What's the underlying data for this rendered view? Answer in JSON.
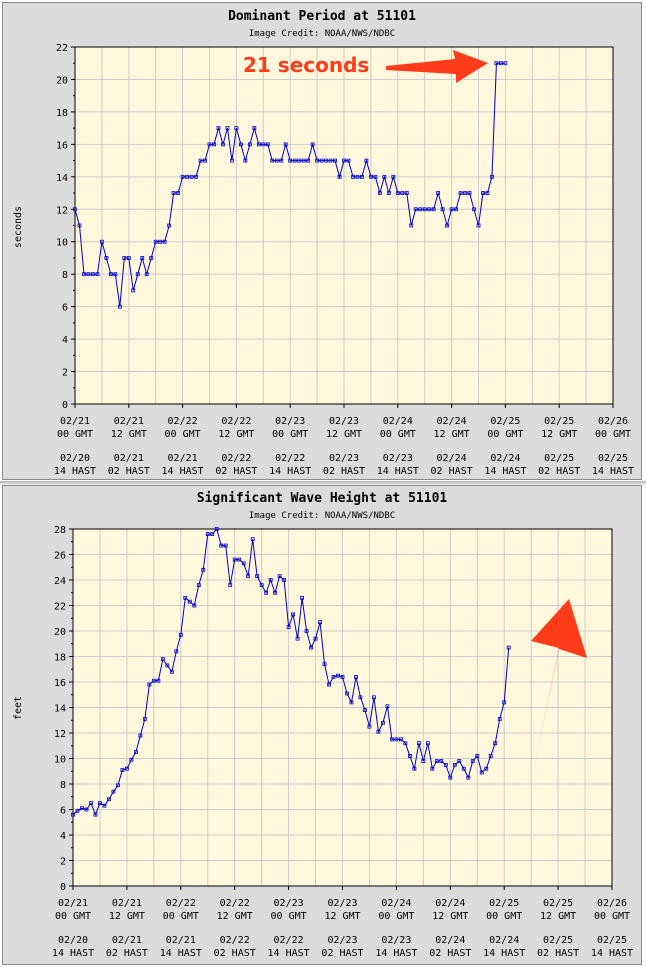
{
  "colors": {
    "panel_bg": "#dcdcdc",
    "plot_bg": "#fff8dc",
    "grid": "#cccccc",
    "series": "#0000cc",
    "annotation": "#ff3b1a"
  },
  "chart_data": [
    {
      "type": "line",
      "title": "Dominant Period at 51101",
      "subtitle": "Image Credit: NOAA/NWS/NDBC",
      "ylabel": "seconds",
      "ylim": [
        0,
        22
      ],
      "yticks": [
        0,
        2,
        4,
        6,
        8,
        10,
        12,
        14,
        16,
        18,
        20,
        22
      ],
      "xlim": [
        0,
        120
      ],
      "x_ticks": [
        {
          "x": 0,
          "gmt": [
            "02/21",
            "00 GMT"
          ],
          "hast": [
            "02/20",
            "14 HAST"
          ]
        },
        {
          "x": 12,
          "gmt": [
            "02/21",
            "12 GMT"
          ],
          "hast": [
            "02/21",
            "02 HAST"
          ]
        },
        {
          "x": 24,
          "gmt": [
            "02/22",
            "00 GMT"
          ],
          "hast": [
            "02/21",
            "14 HAST"
          ]
        },
        {
          "x": 36,
          "gmt": [
            "02/22",
            "12 GMT"
          ],
          "hast": [
            "02/22",
            "02 HAST"
          ]
        },
        {
          "x": 48,
          "gmt": [
            "02/23",
            "00 GMT"
          ],
          "hast": [
            "02/22",
            "14 HAST"
          ]
        },
        {
          "x": 60,
          "gmt": [
            "02/23",
            "12 GMT"
          ],
          "hast": [
            "02/23",
            "02 HAST"
          ]
        },
        {
          "x": 72,
          "gmt": [
            "02/24",
            "00 GMT"
          ],
          "hast": [
            "02/23",
            "14 HAST"
          ]
        },
        {
          "x": 84,
          "gmt": [
            "02/24",
            "12 GMT"
          ],
          "hast": [
            "02/24",
            "02 HAST"
          ]
        },
        {
          "x": 96,
          "gmt": [
            "02/25",
            "00 GMT"
          ],
          "hast": [
            "02/24",
            "14 HAST"
          ]
        },
        {
          "x": 108,
          "gmt": [
            "02/25",
            "12 GMT"
          ],
          "hast": [
            "02/25",
            "02 HAST"
          ]
        },
        {
          "x": 120,
          "gmt": [
            "02/26",
            "00 GMT"
          ],
          "hast": [
            "02/25",
            "14 HAST"
          ]
        }
      ],
      "values": [
        12,
        11,
        8,
        8,
        8,
        8,
        10,
        9,
        8,
        8,
        6,
        9,
        9,
        7,
        8,
        9,
        8,
        9,
        10,
        10,
        10,
        11,
        13,
        13,
        14,
        14,
        14,
        14,
        15,
        15,
        16,
        16,
        17,
        16,
        17,
        15,
        17,
        16,
        15,
        16,
        17,
        16,
        16,
        16,
        15,
        15,
        15,
        16,
        15,
        15,
        15,
        15,
        15,
        16,
        15,
        15,
        15,
        15,
        15,
        14,
        15,
        15,
        14,
        14,
        14,
        15,
        14,
        14,
        13,
        14,
        13,
        14,
        13,
        13,
        13,
        11,
        12,
        12,
        12,
        12,
        12,
        13,
        12,
        11,
        12,
        12,
        13,
        13,
        13,
        12,
        11,
        13,
        13,
        14,
        21,
        21,
        21
      ],
      "annotation": {
        "text": "21 seconds"
      }
    },
    {
      "type": "line",
      "title": "Significant Wave Height at 51101",
      "subtitle": "Image Credit: NOAA/NWS/NDBC",
      "ylabel": "feet",
      "ylim": [
        0,
        28
      ],
      "yticks": [
        0,
        2,
        4,
        6,
        8,
        10,
        12,
        14,
        16,
        18,
        20,
        22,
        24,
        26,
        28
      ],
      "xlim": [
        0,
        120
      ],
      "x_ticks": [
        {
          "x": 0,
          "gmt": [
            "02/21",
            "00 GMT"
          ],
          "hast": [
            "02/20",
            "14 HAST"
          ]
        },
        {
          "x": 12,
          "gmt": [
            "02/21",
            "12 GMT"
          ],
          "hast": [
            "02/21",
            "02 HAST"
          ]
        },
        {
          "x": 24,
          "gmt": [
            "02/22",
            "00 GMT"
          ],
          "hast": [
            "02/21",
            "14 HAST"
          ]
        },
        {
          "x": 36,
          "gmt": [
            "02/22",
            "12 GMT"
          ],
          "hast": [
            "02/22",
            "02 HAST"
          ]
        },
        {
          "x": 48,
          "gmt": [
            "02/23",
            "00 GMT"
          ],
          "hast": [
            "02/22",
            "14 HAST"
          ]
        },
        {
          "x": 60,
          "gmt": [
            "02/23",
            "12 GMT"
          ],
          "hast": [
            "02/23",
            "02 HAST"
          ]
        },
        {
          "x": 72,
          "gmt": [
            "02/24",
            "00 GMT"
          ],
          "hast": [
            "02/23",
            "14 HAST"
          ]
        },
        {
          "x": 84,
          "gmt": [
            "02/24",
            "12 GMT"
          ],
          "hast": [
            "02/24",
            "02 HAST"
          ]
        },
        {
          "x": 96,
          "gmt": [
            "02/25",
            "00 GMT"
          ],
          "hast": [
            "02/24",
            "14 HAST"
          ]
        },
        {
          "x": 108,
          "gmt": [
            "02/25",
            "12 GMT"
          ],
          "hast": [
            "02/25",
            "02 HAST"
          ]
        },
        {
          "x": 120,
          "gmt": [
            "02/26",
            "00 GMT"
          ],
          "hast": [
            "02/25",
            "14 HAST"
          ]
        }
      ],
      "values": [
        5.6,
        5.9,
        6.1,
        6.0,
        6.5,
        5.6,
        6.5,
        6.3,
        6.8,
        7.4,
        7.9,
        9.1,
        9.2,
        9.9,
        10.5,
        11.8,
        13.1,
        15.8,
        16.1,
        16.1,
        17.8,
        17.3,
        16.8,
        18.4,
        19.7,
        22.6,
        22.3,
        22.0,
        23.6,
        24.8,
        27.6,
        27.6,
        28.0,
        26.7,
        26.7,
        23.6,
        25.6,
        25.6,
        25.3,
        24.3,
        27.2,
        24.3,
        23.6,
        23.0,
        24.0,
        23.0,
        24.3,
        24.0,
        20.3,
        21.3,
        19.4,
        22.6,
        20.0,
        18.7,
        19.4,
        20.7,
        17.4,
        15.8,
        16.4,
        16.5,
        16.4,
        15.1,
        14.4,
        16.4,
        14.8,
        13.8,
        12.5,
        14.8,
        12.1,
        12.8,
        14.1,
        11.5,
        11.5,
        11.5,
        11.2,
        10.2,
        9.2,
        11.2,
        9.8,
        11.2,
        9.2,
        9.8,
        9.8,
        9.5,
        8.5,
        9.5,
        9.8,
        9.2,
        8.5,
        9.8,
        10.2,
        8.9,
        9.2,
        10.2,
        11.2,
        13.1,
        14.4,
        18.7
      ],
      "annotation": {
        "text": ""
      }
    }
  ]
}
